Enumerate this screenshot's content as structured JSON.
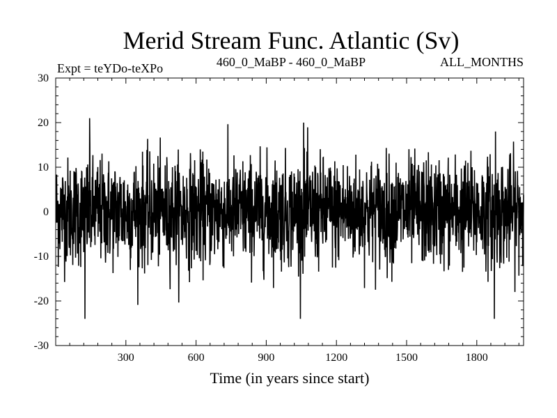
{
  "chart_data": {
    "type": "line",
    "title": "Merid Stream Func. Atlantic (Sv)",
    "subtitle_left": "Expt = teYDo-teXPo",
    "subtitle_center": "460_0_MaBP - 460_0_MaBP",
    "subtitle_right": "ALL_MONTHS",
    "xlabel": "Time (in years since start)",
    "ylabel": "",
    "xlim": [
      0,
      2000
    ],
    "ylim": [
      -30,
      30
    ],
    "x_ticks": [
      300,
      600,
      900,
      1200,
      1500,
      1800
    ],
    "y_ticks": [
      -30,
      -20,
      -10,
      0,
      10,
      20,
      30
    ],
    "x_tick_labels": [
      "300",
      "600",
      "900",
      "1200",
      "1500",
      "1800"
    ],
    "y_tick_labels": [
      "-30",
      "-20",
      "-10",
      "0",
      "10",
      "20",
      "30"
    ],
    "series": [
      {
        "name": "Merid Stream Func. Atlantic",
        "x_start": 1,
        "x_step": 1,
        "n_points": 2000,
        "approx_mean": 0,
        "approx_std": 6,
        "approx_min": -24,
        "approx_max": 21,
        "description_peaks": [
          {
            "x": 145,
            "y": 21
          },
          {
            "x": 125,
            "y": -24
          },
          {
            "x": 1060,
            "y": 20
          },
          {
            "x": 1875,
            "y": -24
          },
          {
            "x": 1880,
            "y": 18
          }
        ]
      }
    ],
    "line_color": "#000000"
  }
}
